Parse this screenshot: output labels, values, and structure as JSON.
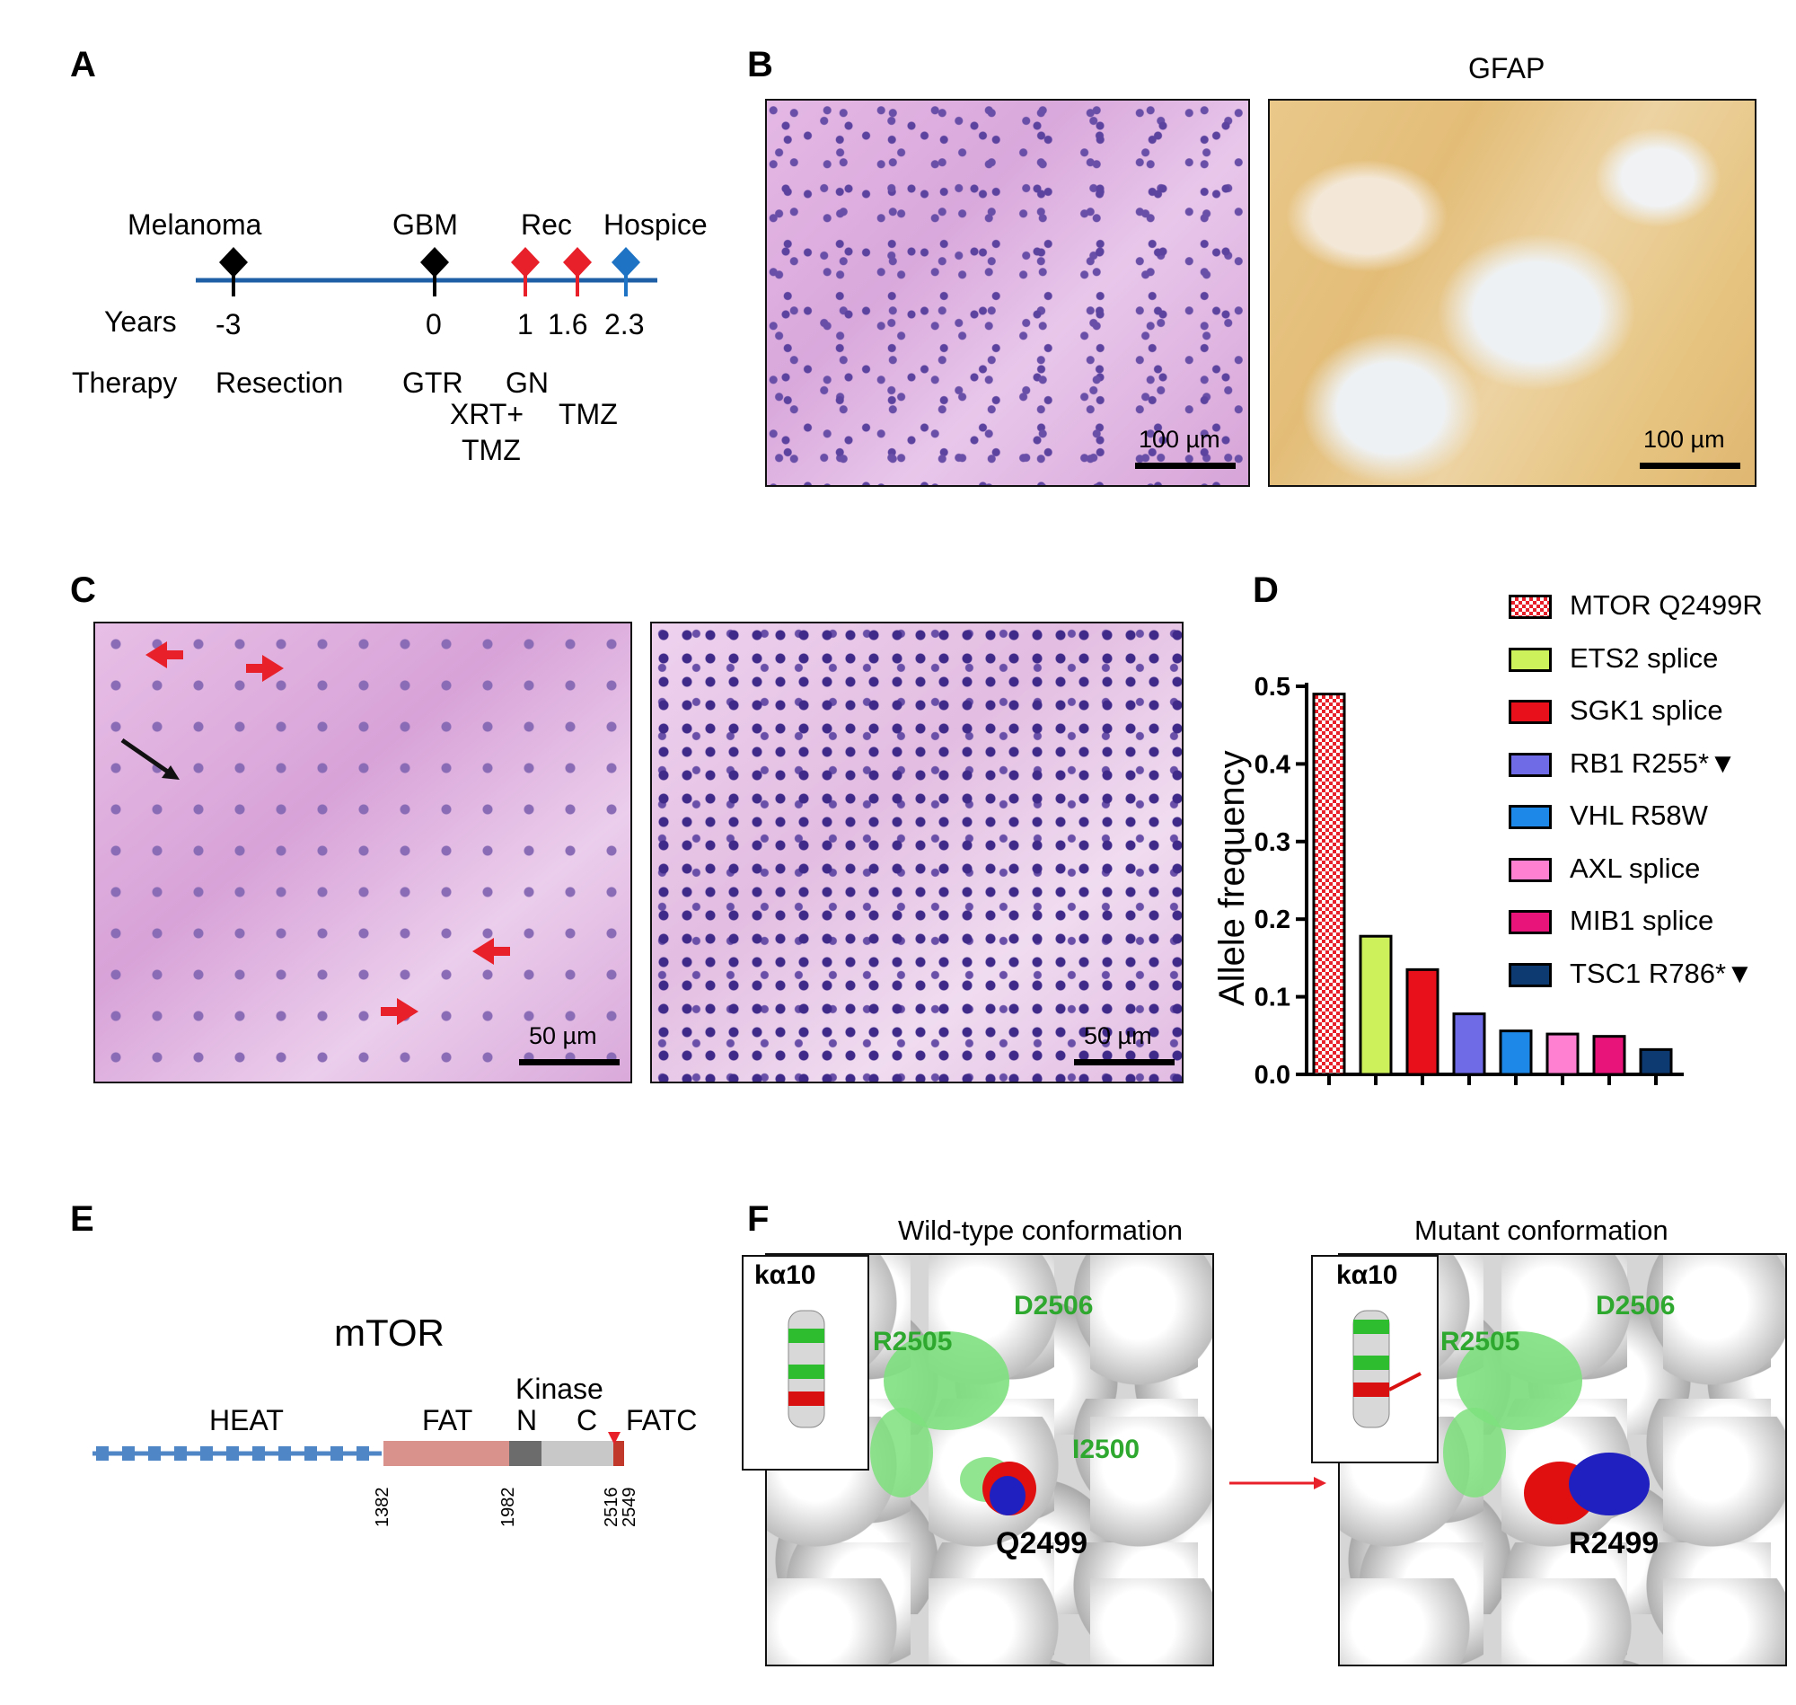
{
  "panels": {
    "A": "A",
    "B": "B",
    "C": "C",
    "D": "D",
    "E": "E",
    "F": "F"
  },
  "timeline": {
    "events": [
      "Melanoma",
      "GBM",
      "Rec",
      "Hospice"
    ],
    "years_label": "Years",
    "years": [
      "-3",
      "0",
      "1",
      "1.6",
      "2.3"
    ],
    "therapy_label": "Therapy",
    "therapies": [
      "Resection",
      "GTR",
      "GN",
      "XRT+",
      "TMZ",
      "TMZ"
    ],
    "colors": {
      "line": "#1f5fa6",
      "black": "#000000",
      "red": "#e8202a",
      "blue": "#1f73c4"
    }
  },
  "histology": {
    "gfap_title": "GFAP",
    "scale_100": "100 µm",
    "scale_50": "50 µm"
  },
  "chart_data": {
    "type": "bar",
    "ylabel": "Allele frequency",
    "ylim": [
      0,
      0.5
    ],
    "yticks": [
      "0.0",
      "0.1",
      "0.2",
      "0.3",
      "0.4",
      "0.5"
    ],
    "categories": [
      "MTOR Q2499R",
      "ETS2 splice",
      "SGK1 splice",
      "RB1 R255*▼",
      "VHL R58W",
      "AXL splice",
      "MIB1 splice",
      "TSC1 R786*▼"
    ],
    "values": [
      0.49,
      0.178,
      0.135,
      0.078,
      0.056,
      0.052,
      0.049,
      0.032
    ],
    "colors": [
      "#e8202a",
      "#ccf15a",
      "#e8101a",
      "#6f6ae6",
      "#1e88e8",
      "#ff7fd0",
      "#e8147a",
      "#0e3a72"
    ],
    "legend": "top-right"
  },
  "domain_diagram": {
    "protein": "mTOR",
    "domains": [
      "HEAT",
      "FAT",
      "Kinase",
      "N",
      "C",
      "FATC"
    ],
    "positions": [
      "1382",
      "1982",
      "2516",
      "2549"
    ]
  },
  "structure": {
    "wt_title": "Wild-type conformation",
    "mut_title": "Mutant conformation",
    "helix": "kα10",
    "residues_wt": [
      "R2505",
      "D2506",
      "I2500",
      "Q2499"
    ],
    "residues_mut": [
      "R2505",
      "D2506",
      "R2499"
    ]
  }
}
